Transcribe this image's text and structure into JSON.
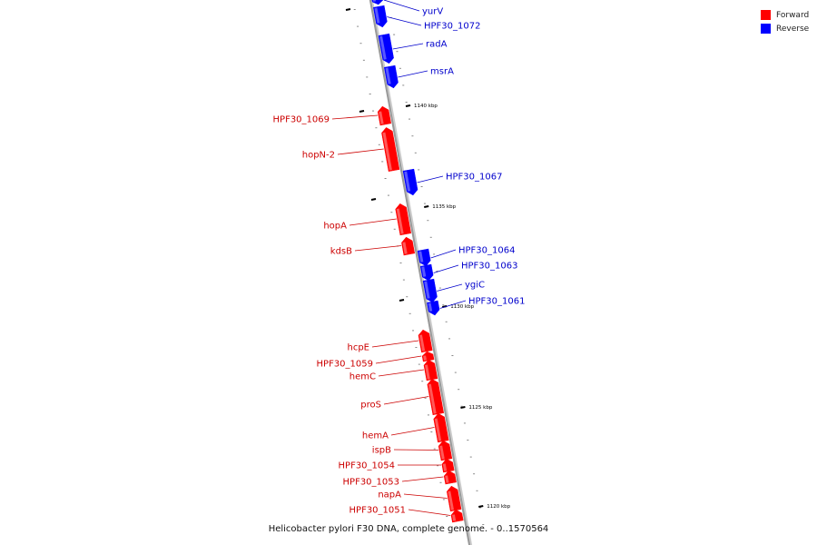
{
  "caption": "Helicobacter pylori F30 DNA, complete genome. - 0..1570564",
  "legend": [
    {
      "label": "Forward",
      "color": "#ff0000"
    },
    {
      "label": "Reverse",
      "color": "#0000ff"
    }
  ],
  "colors": {
    "forward": "#ff0000",
    "reverse": "#0000ff",
    "forward_label": "#cc0000",
    "reverse_label": "#0000cc",
    "backbone": "#999999"
  },
  "ticks": [
    "1140 kbp",
    "1135 kbp",
    "1130 kbp",
    "1125 kbp",
    "1120 kbp"
  ],
  "genes": [
    {
      "name": "yurV",
      "strand": "reverse"
    },
    {
      "name": "HPF30_1072",
      "strand": "reverse"
    },
    {
      "name": "radA",
      "strand": "reverse"
    },
    {
      "name": "msrA",
      "strand": "reverse"
    },
    {
      "name": "HPF30_1069",
      "strand": "forward"
    },
    {
      "name": "hopN-2",
      "strand": "forward"
    },
    {
      "name": "HPF30_1067",
      "strand": "reverse"
    },
    {
      "name": "hopA",
      "strand": "forward"
    },
    {
      "name": "kdsB",
      "strand": "forward"
    },
    {
      "name": "HPF30_1064",
      "strand": "reverse"
    },
    {
      "name": "HPF30_1063",
      "strand": "reverse"
    },
    {
      "name": "ygiC",
      "strand": "reverse"
    },
    {
      "name": "HPF30_1061",
      "strand": "reverse"
    },
    {
      "name": "hcpE",
      "strand": "forward"
    },
    {
      "name": "HPF30_1059",
      "strand": "forward"
    },
    {
      "name": "hemC",
      "strand": "forward"
    },
    {
      "name": "proS",
      "strand": "forward"
    },
    {
      "name": "hemA",
      "strand": "forward"
    },
    {
      "name": "ispB",
      "strand": "forward"
    },
    {
      "name": "HPF30_1054",
      "strand": "forward"
    },
    {
      "name": "HPF30_1053",
      "strand": "forward"
    },
    {
      "name": "napA",
      "strand": "forward"
    },
    {
      "name": "HPF30_1051",
      "strand": "forward"
    }
  ]
}
